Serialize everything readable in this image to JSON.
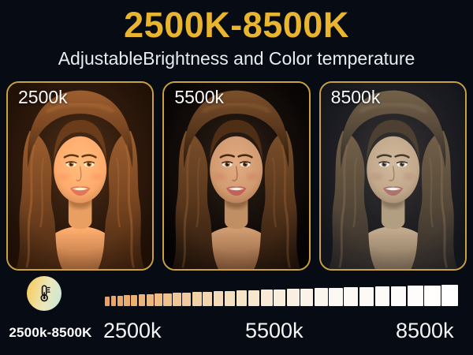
{
  "header": {
    "title": "2500K-8500K",
    "subtitle": "AdjustableBrightness and Color temperature"
  },
  "photos": [
    {
      "label": "2500k",
      "temperature": "warm"
    },
    {
      "label": "5500k",
      "temperature": "neutral"
    },
    {
      "label": "8500k",
      "temperature": "cool"
    }
  ],
  "temperature_scale": {
    "badge": {
      "icon": "thermometer-icon",
      "range_label": "2500k-8500K"
    },
    "strip": {
      "square_count": 30,
      "color_stops": [
        "#e7a160",
        "#eebd85",
        "#f6e2c5",
        "#fcf8f2",
        "#ffffff"
      ],
      "min_size": {
        "width": 6,
        "height": 12
      },
      "max_size": {
        "width": 21,
        "height": 27
      }
    },
    "tick_labels": [
      "2500k",
      "5500k",
      "8500k"
    ]
  },
  "colors": {
    "background": "#070b14",
    "title_gold": "#e9b52e",
    "photo_border": "#c9a23e",
    "badge_gradient_start": "#f5d06e",
    "badge_gradient_end": "#cfe7d2"
  }
}
